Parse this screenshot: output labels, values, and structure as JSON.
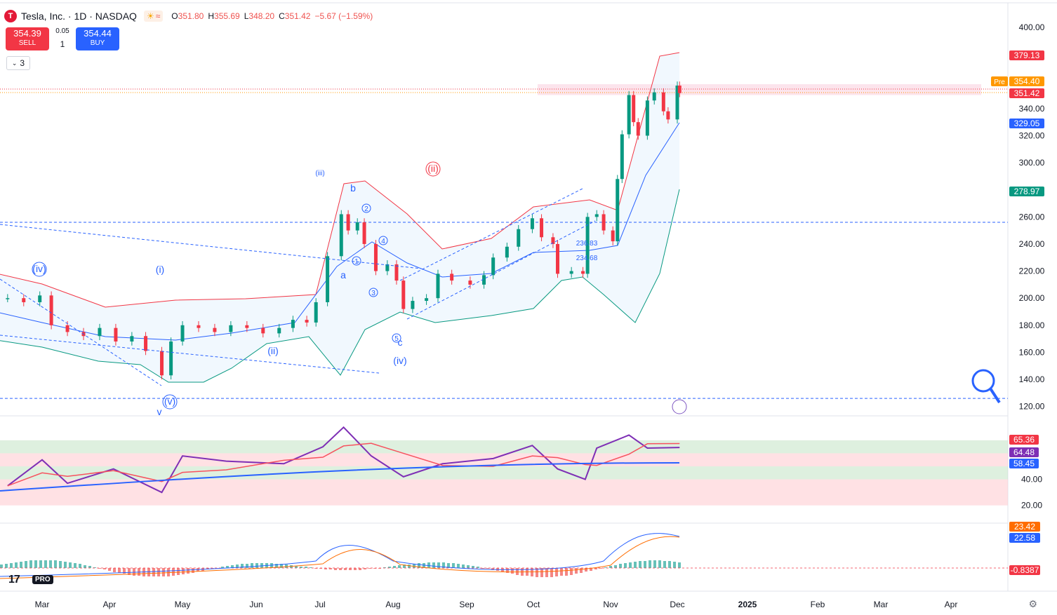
{
  "header": {
    "logo_glyph": "T",
    "title": "Tesla, Inc. · 1D · NASDAQ",
    "session_icon_1": "sun-icon",
    "session_icon_2": "wave-icon",
    "o_label": "O",
    "o_value": "351.80",
    "h_label": "H",
    "h_value": "355.69",
    "l_label": "L",
    "l_value": "348.20",
    "c_label": "C",
    "c_value": "351.42",
    "change": "−5.67 (−1.59%)"
  },
  "trade": {
    "sell_price": "354.39",
    "sell_label": "SELL",
    "spread": "0.05",
    "quantity": "1",
    "buy_price": "354.44",
    "buy_label": "BUY"
  },
  "indicators_toggle": {
    "count": "3"
  },
  "brand": {
    "logo": "17",
    "pro": "PRO"
  },
  "colors": {
    "up": "#089981",
    "down": "#f23645",
    "wave": "#2962ff",
    "rsi": "#7e2fb5",
    "rsi_ma": "#f7525f",
    "bb_upper": "#f23645",
    "bb_lower": "#089981",
    "bb_basis": "#2962ff",
    "macd": "#2962ff",
    "signal": "#ff6d00"
  },
  "chart_data": {
    "type": "candlestick",
    "symbol": "Tesla, Inc.",
    "timeframe": "1D",
    "exchange": "NASDAQ",
    "x_ticks": [
      "Mar",
      "Apr",
      "May",
      "Jun",
      "Jul",
      "Aug",
      "Sep",
      "Oct",
      "Nov",
      "Dec",
      "2025",
      "Feb",
      "Mar",
      "Apr"
    ],
    "y_ticks": [
      "400.00",
      "340.00",
      "320.00",
      "300.00",
      "260.00",
      "240.00",
      "220.00",
      "200.00",
      "180.00",
      "160.00",
      "140.00",
      "120.00"
    ],
    "ylim": [
      112,
      405
    ],
    "close_path": [
      [
        "2024-02-15",
        200
      ],
      [
        "2024-02-22",
        197
      ],
      [
        "2024-02-29",
        202
      ],
      [
        "2024-03-05",
        180
      ],
      [
        "2024-03-12",
        175
      ],
      [
        "2024-03-19",
        172
      ],
      [
        "2024-03-26",
        178
      ],
      [
        "2024-04-02",
        168
      ],
      [
        "2024-04-09",
        172
      ],
      [
        "2024-04-15",
        161
      ],
      [
        "2024-04-22",
        143
      ],
      [
        "2024-04-26",
        168
      ],
      [
        "2024-05-01",
        180
      ],
      [
        "2024-05-08",
        178
      ],
      [
        "2024-05-15",
        175
      ],
      [
        "2024-05-22",
        180
      ],
      [
        "2024-05-29",
        178
      ],
      [
        "2024-06-05",
        174
      ],
      [
        "2024-06-12",
        178
      ],
      [
        "2024-06-18",
        184
      ],
      [
        "2024-06-24",
        182
      ],
      [
        "2024-06-28",
        197
      ],
      [
        "2024-07-03",
        231
      ],
      [
        "2024-07-09",
        262
      ],
      [
        "2024-07-12",
        250
      ],
      [
        "2024-07-16",
        256
      ],
      [
        "2024-07-19",
        240
      ],
      [
        "2024-07-24",
        220
      ],
      [
        "2024-07-29",
        225
      ],
      [
        "2024-08-02",
        213
      ],
      [
        "2024-08-05",
        192
      ],
      [
        "2024-08-09",
        198
      ],
      [
        "2024-08-15",
        200
      ],
      [
        "2024-08-20",
        218
      ],
      [
        "2024-08-26",
        213
      ],
      [
        "2024-09-03",
        210
      ],
      [
        "2024-09-09",
        217
      ],
      [
        "2024-09-13",
        230
      ],
      [
        "2024-09-19",
        238
      ],
      [
        "2024-09-24",
        251
      ],
      [
        "2024-09-30",
        259
      ],
      [
        "2024-10-04",
        245
      ],
      [
        "2024-10-09",
        240
      ],
      [
        "2024-10-11",
        218
      ],
      [
        "2024-10-17",
        220
      ],
      [
        "2024-10-22",
        218
      ],
      [
        "2024-10-24",
        260
      ],
      [
        "2024-10-28",
        262
      ],
      [
        "2024-10-31",
        250
      ],
      [
        "2024-11-04",
        242
      ],
      [
        "2024-11-06",
        288
      ],
      [
        "2024-11-08",
        321
      ],
      [
        "2024-11-11",
        350
      ],
      [
        "2024-11-13",
        330
      ],
      [
        "2024-11-15",
        320
      ],
      [
        "2024-11-19",
        346
      ],
      [
        "2024-11-22",
        352
      ],
      [
        "2024-11-26",
        338
      ],
      [
        "2024-11-28",
        332
      ],
      [
        "2024-12-02",
        357
      ],
      [
        "2024-12-03",
        351.42
      ]
    ],
    "horizontal_levels": [
      {
        "value": 256,
        "style": "dashed",
        "color": "#2962ff"
      },
      {
        "value": 126,
        "style": "dashed",
        "color": "#2962ff"
      }
    ],
    "zones": [
      {
        "from": 350,
        "to": 358,
        "color": "#fce4ec"
      }
    ],
    "price_tags": [
      {
        "value": "379.13",
        "color": "#f23645"
      },
      {
        "value": "354.40",
        "color": "#ff9800",
        "prefix": "Pre"
      },
      {
        "value": "351.42",
        "color": "#f23645"
      },
      {
        "value": "329.05",
        "color": "#2962ff"
      },
      {
        "value": "278.97",
        "color": "#089981"
      }
    ],
    "annotations": [
      "(iii)",
      "(ii)",
      "(iv)",
      "(i)",
      "(ii)",
      "(iv)",
      "(v)",
      "v",
      "a",
      "b",
      "c",
      "1",
      "2",
      "3",
      "4",
      "5",
      "236.83",
      "234.68"
    ],
    "rsi": {
      "ticks": [
        "40.00",
        "20.00"
      ],
      "ylim": [
        15,
        85
      ],
      "tags": [
        {
          "value": "65.36",
          "color": "#f23645"
        },
        {
          "value": "64.48",
          "color": "#7e2fb5"
        },
        {
          "value": "58.45",
          "color": "#2962ff"
        }
      ],
      "series_path": [
        [
          "2024-02-15",
          35
        ],
        [
          "2024-03-01",
          55
        ],
        [
          "2024-03-12",
          37
        ],
        [
          "2024-04-01",
          48
        ],
        [
          "2024-04-22",
          30
        ],
        [
          "2024-05-01",
          58
        ],
        [
          "2024-05-20",
          54
        ],
        [
          "2024-06-14",
          52
        ],
        [
          "2024-07-01",
          65
        ],
        [
          "2024-07-10",
          80
        ],
        [
          "2024-07-22",
          58
        ],
        [
          "2024-08-05",
          42
        ],
        [
          "2024-08-22",
          52
        ],
        [
          "2024-09-13",
          56
        ],
        [
          "2024-09-30",
          66
        ],
        [
          "2024-10-11",
          48
        ],
        [
          "2024-10-23",
          40
        ],
        [
          "2024-10-28",
          64
        ],
        [
          "2024-11-11",
          74
        ],
        [
          "2024-11-19",
          64
        ],
        [
          "2024-12-03",
          64.48
        ]
      ]
    },
    "macd": {
      "tags": [
        {
          "value": "23.42",
          "color": "#ff6d00"
        },
        {
          "value": "22.58",
          "color": "#2962ff"
        },
        {
          "value": "-0.8387",
          "color": "#f23645"
        }
      ]
    }
  }
}
